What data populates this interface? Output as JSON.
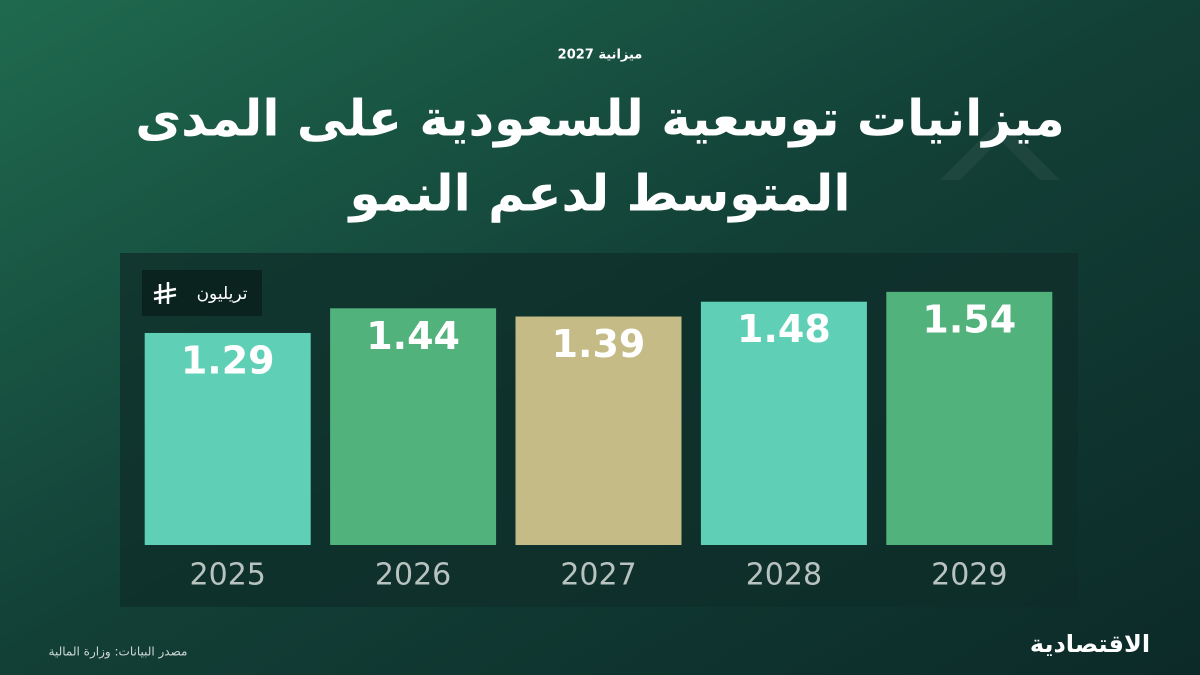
{
  "chart_data": {
    "type": "bar",
    "title_lines": [
      "ميزانيات توسعية للسعودية على المدى",
      "المتوسط لدعم النمو"
    ],
    "budget_logo": "ميزانية 2027",
    "unit": "تريليون",
    "categories": [
      "2025",
      "2026",
      "2027",
      "2028",
      "2029"
    ],
    "values": [
      1.29,
      1.44,
      1.39,
      1.48,
      1.54
    ],
    "colors": [
      "#5fd0b6",
      "#52b27b",
      "#c4bb86",
      "#5fd0b6",
      "#52b27b"
    ],
    "ylim": [
      0,
      1.6
    ],
    "source": "مصدر البيانات: وزارة المالية",
    "brand": "الاقتصادية"
  }
}
